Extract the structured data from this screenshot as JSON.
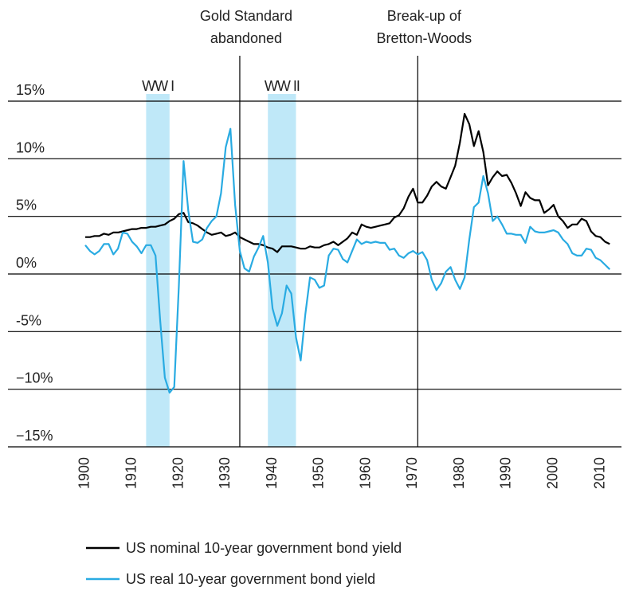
{
  "chart_data": {
    "type": "line",
    "x": [
      1900,
      1901,
      1902,
      1903,
      1904,
      1905,
      1906,
      1907,
      1908,
      1909,
      1910,
      1911,
      1912,
      1913,
      1914,
      1915,
      1916,
      1917,
      1918,
      1919,
      1920,
      1921,
      1922,
      1923,
      1924,
      1925,
      1926,
      1927,
      1928,
      1929,
      1930,
      1931,
      1932,
      1933,
      1934,
      1935,
      1936,
      1937,
      1938,
      1939,
      1940,
      1941,
      1942,
      1943,
      1944,
      1945,
      1946,
      1947,
      1948,
      1949,
      1950,
      1951,
      1952,
      1953,
      1954,
      1955,
      1956,
      1957,
      1958,
      1959,
      1960,
      1961,
      1962,
      1963,
      1964,
      1965,
      1966,
      1967,
      1968,
      1969,
      1970,
      1971,
      1972,
      1973,
      1974,
      1975,
      1976,
      1977,
      1978,
      1979,
      1980,
      1981,
      1982,
      1983,
      1984,
      1985,
      1986,
      1987,
      1988,
      1989,
      1990,
      1991,
      1992,
      1993,
      1994,
      1995,
      1996,
      1997,
      1998,
      1999,
      2000,
      2001,
      2002,
      2003,
      2004,
      2005,
      2006,
      2007,
      2008,
      2009,
      2010,
      2011,
      2012
    ],
    "series": [
      {
        "name": "US nominal 10-year government bond yield",
        "color": "#000000",
        "values": [
          3.2,
          3.2,
          3.3,
          3.3,
          3.5,
          3.4,
          3.6,
          3.6,
          3.7,
          3.8,
          3.9,
          3.9,
          4.0,
          4.0,
          4.1,
          4.1,
          4.2,
          4.3,
          4.6,
          4.8,
          5.2,
          5.3,
          4.5,
          4.4,
          4.2,
          3.9,
          3.6,
          3.4,
          3.5,
          3.6,
          3.3,
          3.4,
          3.6,
          3.2,
          3.0,
          2.8,
          2.6,
          2.6,
          2.5,
          2.3,
          2.2,
          1.9,
          2.4,
          2.4,
          2.4,
          2.3,
          2.2,
          2.2,
          2.4,
          2.3,
          2.3,
          2.5,
          2.6,
          2.8,
          2.5,
          2.8,
          3.1,
          3.6,
          3.4,
          4.3,
          4.1,
          4.0,
          4.1,
          4.2,
          4.3,
          4.4,
          4.9,
          5.1,
          5.7,
          6.7,
          7.4,
          6.2,
          6.2,
          6.8,
          7.6,
          8.0,
          7.6,
          7.4,
          8.4,
          9.4,
          11.4,
          13.9,
          13.0,
          11.1,
          12.4,
          10.6,
          7.7,
          8.4,
          8.9,
          8.5,
          8.6,
          7.9,
          7.0,
          5.9,
          7.1,
          6.6,
          6.4,
          6.4,
          5.3,
          5.6,
          6.0,
          5.0,
          4.6,
          4.0,
          4.3,
          4.3,
          4.8,
          4.6,
          3.7,
          3.3,
          3.2,
          2.8,
          2.6
        ]
      },
      {
        "name": "US real 10-year government bond yield",
        "color": "#29abe2",
        "values": [
          2.5,
          2.0,
          1.7,
          2.0,
          2.6,
          2.6,
          1.7,
          2.2,
          3.6,
          3.5,
          2.8,
          2.4,
          1.8,
          2.5,
          2.5,
          1.6,
          -4.0,
          -9.0,
          -10.3,
          -9.8,
          -1.0,
          9.8,
          5.5,
          2.8,
          2.7,
          3.0,
          4.0,
          4.6,
          5.0,
          7.0,
          11.0,
          12.6,
          6.0,
          2.0,
          0.5,
          0.2,
          1.5,
          2.3,
          3.3,
          1.0,
          -3.0,
          -4.5,
          -3.4,
          -1.0,
          -1.7,
          -5.5,
          -7.5,
          -3.5,
          -0.3,
          -0.5,
          -1.2,
          -1.0,
          1.6,
          2.2,
          2.1,
          1.3,
          1.0,
          2.0,
          3.0,
          2.6,
          2.8,
          2.7,
          2.8,
          2.7,
          2.7,
          2.1,
          2.2,
          1.6,
          1.4,
          1.8,
          2.0,
          1.7,
          1.9,
          1.2,
          -0.5,
          -1.4,
          -0.8,
          0.2,
          0.6,
          -0.5,
          -1.3,
          -0.3,
          3.0,
          5.8,
          6.2,
          8.5,
          7.0,
          4.6,
          5.0,
          4.3,
          3.5,
          3.5,
          3.4,
          3.4,
          2.7,
          4.1,
          3.7,
          3.6,
          3.6,
          3.7,
          3.8,
          3.6,
          3.0,
          2.6,
          1.8,
          1.6,
          1.6,
          2.2,
          2.1,
          1.4,
          1.2,
          0.8,
          0.4
        ]
      }
    ],
    "xlim": [
      1883.5,
      2014.5
    ],
    "xticks": [
      1900,
      1910,
      1920,
      1930,
      1940,
      1950,
      1960,
      1970,
      1980,
      1990,
      2000,
      2010
    ],
    "ylim": [
      -15,
      15
    ],
    "yticks": [
      {
        "value": -15,
        "label": "−15%"
      },
      {
        "value": -10,
        "label": "−10%"
      },
      {
        "value": -5,
        "label": "-5%"
      },
      {
        "value": 0,
        "label": "0%"
      },
      {
        "value": 5,
        "label": "5%"
      },
      {
        "value": 10,
        "label": "10%"
      },
      {
        "value": 15,
        "label": "15%"
      }
    ],
    "grid": true,
    "bands": [
      {
        "label": "WW I",
        "range": [
          1913,
          1918
        ],
        "color": "#bfe8f8"
      },
      {
        "label": "WW II",
        "range": [
          1939,
          1945
        ],
        "color": "#bfe8f8"
      }
    ],
    "events": [
      {
        "text": [
          "Gold Standard",
          "abandoned"
        ],
        "x": 1933
      },
      {
        "text": [
          "Break-up of",
          "Bretton-Woods"
        ],
        "x": 1971
      }
    ],
    "legend": "bottom-left"
  }
}
